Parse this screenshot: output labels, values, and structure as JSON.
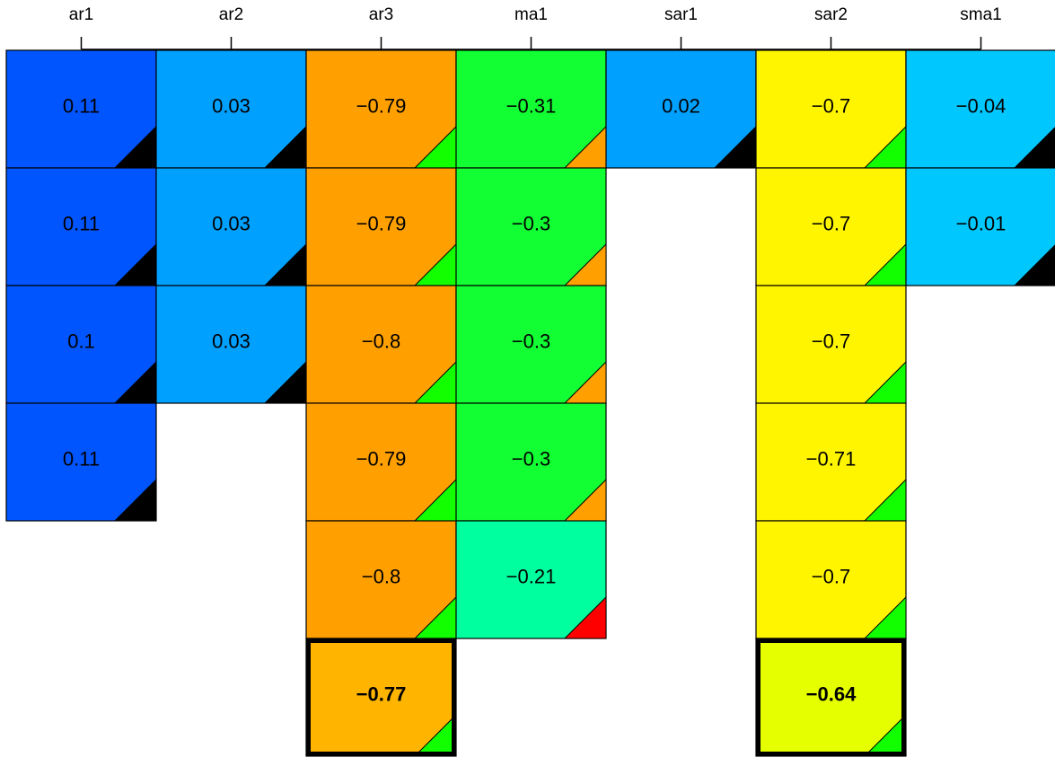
{
  "chart_data": {
    "type": "heatmap",
    "columns": [
      "ar1",
      "ar2",
      "ar3",
      "ma1",
      "sar1",
      "sar2",
      "sma1"
    ],
    "column_colors": [
      "#0055ff",
      "#00a0ff",
      "#ffa000",
      "#12ff33",
      "#00a0ff",
      "#fff500",
      "#00c8ff"
    ],
    "highlight_colors": {
      "ar3": "#ffb400",
      "sar2": "#e6ff00"
    },
    "corner_colors": {
      "positive": "#000000",
      "negative": "#12ff00",
      "negative_alt": "#ffa000",
      "alert": "#ff0000"
    },
    "columns_data": [
      {
        "name": "ar1",
        "cells": [
          {
            "value": "0.11",
            "corner": "positive"
          },
          {
            "value": "0.11",
            "corner": "positive"
          },
          {
            "value": "0.1",
            "corner": "positive"
          },
          {
            "value": "0.11",
            "corner": "positive"
          }
        ]
      },
      {
        "name": "ar2",
        "cells": [
          {
            "value": "0.03",
            "corner": "positive"
          },
          {
            "value": "0.03",
            "corner": "positive"
          },
          {
            "value": "0.03",
            "corner": "positive"
          }
        ]
      },
      {
        "name": "ar3",
        "cells": [
          {
            "value": "−0.79",
            "corner": "negative"
          },
          {
            "value": "−0.79",
            "corner": "negative"
          },
          {
            "value": "−0.8",
            "corner": "negative"
          },
          {
            "value": "−0.79",
            "corner": "negative"
          },
          {
            "value": "−0.8",
            "corner": "negative"
          },
          {
            "value": "−0.77",
            "corner": "negative",
            "highlight": true
          }
        ]
      },
      {
        "name": "ma1",
        "cells": [
          {
            "value": "−0.31",
            "corner": "negative_alt"
          },
          {
            "value": "−0.3",
            "corner": "negative_alt"
          },
          {
            "value": "−0.3",
            "corner": "negative_alt"
          },
          {
            "value": "−0.3",
            "corner": "negative_alt"
          },
          {
            "value": "−0.21",
            "corner": "alert",
            "color": "#00ff9f"
          }
        ]
      },
      {
        "name": "sar1",
        "cells": [
          {
            "value": "0.02",
            "corner": "positive"
          }
        ]
      },
      {
        "name": "sar2",
        "cells": [
          {
            "value": "−0.7",
            "corner": "negative"
          },
          {
            "value": "−0.7",
            "corner": "negative"
          },
          {
            "value": "−0.7",
            "corner": "negative"
          },
          {
            "value": "−0.71",
            "corner": "negative"
          },
          {
            "value": "−0.7",
            "corner": "negative"
          },
          {
            "value": "−0.64",
            "corner": "negative",
            "highlight": true
          }
        ]
      },
      {
        "name": "sma1",
        "cells": [
          {
            "value": "−0.04",
            "corner": "positive"
          },
          {
            "value": "−0.01",
            "corner": "positive"
          }
        ]
      }
    ]
  }
}
